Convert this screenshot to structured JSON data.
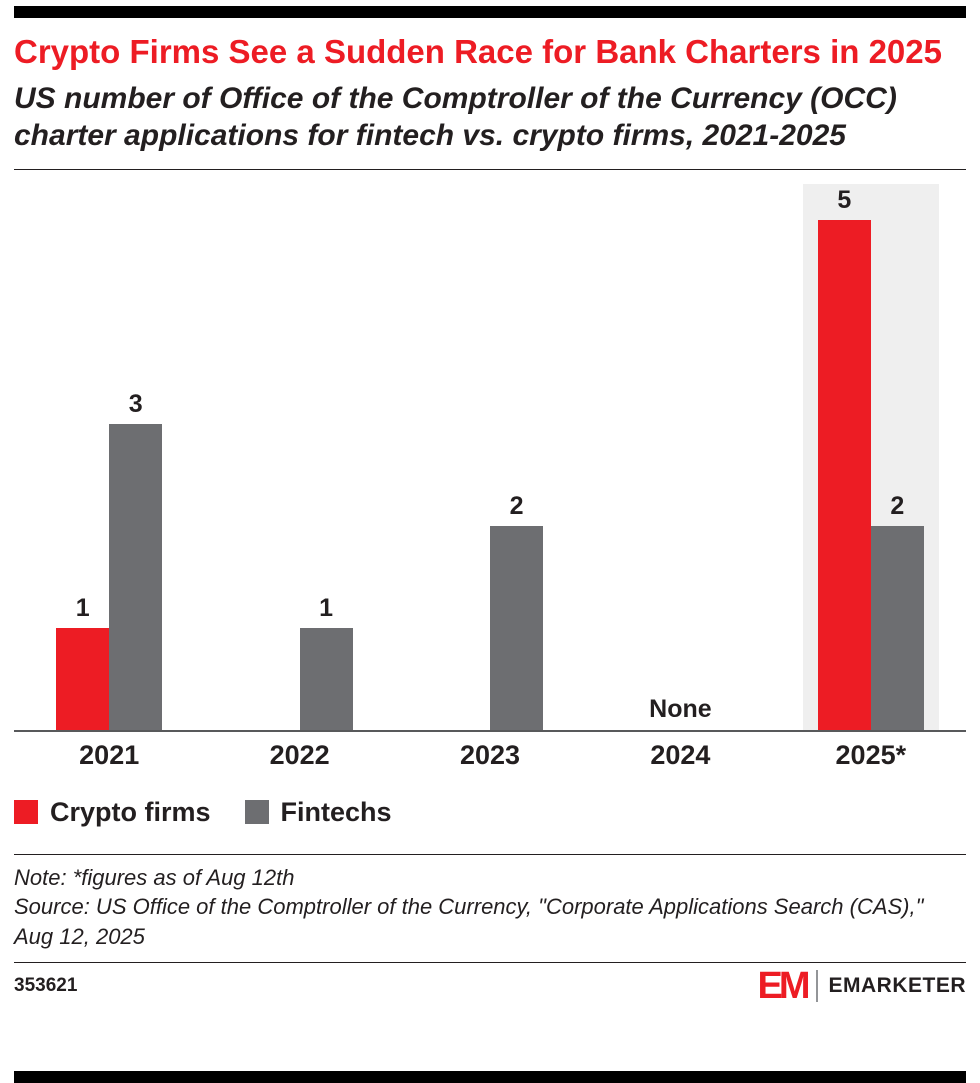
{
  "header": {
    "title": "Crypto Firms See a Sudden Race for Bank Charters in 2025",
    "subtitle": "US number of Office of the Comptroller of the Currency (OCC) charter applications for fintech vs. crypto firms, 2021-2025"
  },
  "chart_data": {
    "type": "bar",
    "title": "Crypto Firms See a Sudden Race for Bank Charters in 2025",
    "categories": [
      "2021",
      "2022",
      "2023",
      "2024",
      "2025*"
    ],
    "series": [
      {
        "name": "Crypto firms",
        "color": "#ed1c24",
        "values": [
          1,
          0,
          0,
          0,
          5
        ]
      },
      {
        "name": "Fintechs",
        "color": "#6d6e71",
        "values": [
          3,
          1,
          2,
          0,
          2
        ]
      }
    ],
    "empty_label": "None",
    "highlighted_category": "2025*",
    "highlight_color": "#efefef",
    "xlabel": "",
    "ylabel": "",
    "ylim": [
      0,
      5
    ],
    "grid": false,
    "legend_position": "bottom-left"
  },
  "notes": {
    "note": "Note: *figures as of Aug 12th",
    "source": "Source: US Office of the Comptroller of the Currency, \"Corporate Applications Search (CAS),\" Aug 12, 2025"
  },
  "footer": {
    "chart_id": "353621",
    "logo_text": "EM",
    "brand": "EMARKETER"
  }
}
